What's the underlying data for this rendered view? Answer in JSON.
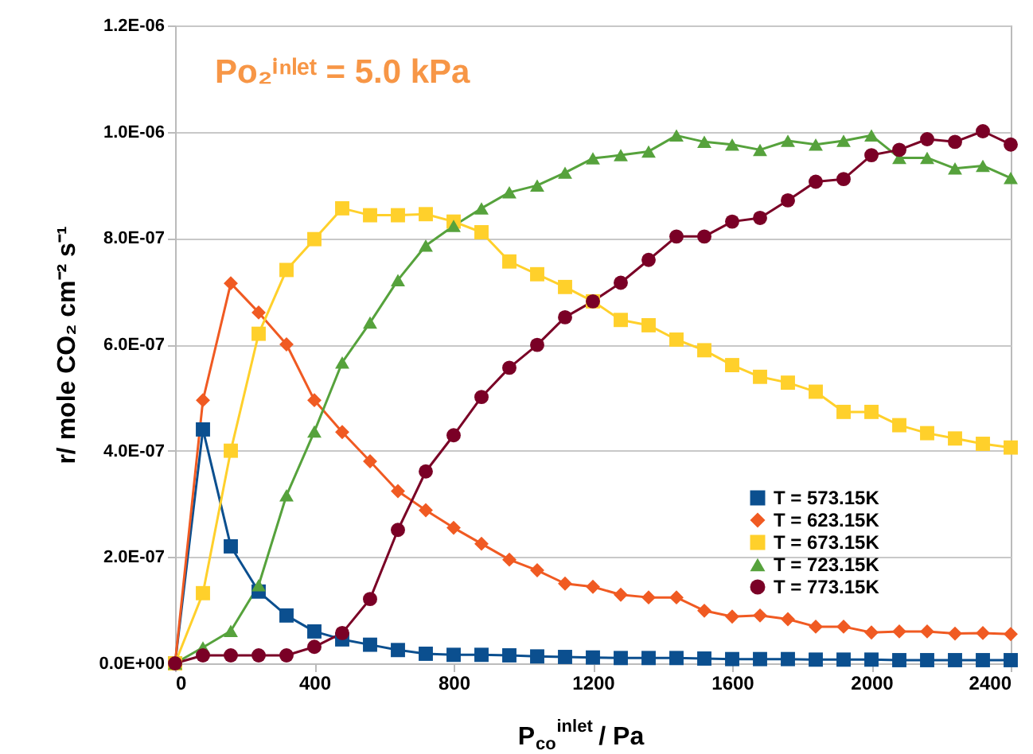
{
  "chart_data": {
    "type": "line",
    "xlabel": "P$_{co}$$^{inlet}$ /   Pa",
    "ylabel": "r/  mole CO₂ cm⁻² s⁻¹",
    "annotations": [
      "Po₂ⁱⁿˡᵉᵗ = 5.0 kPa"
    ],
    "x": [
      0,
      80,
      160,
      240,
      320,
      400,
      480,
      560,
      640,
      720,
      800,
      880,
      960,
      1040,
      1120,
      1200,
      1280,
      1360,
      1440,
      1520,
      1600,
      1680,
      1760,
      1840,
      1920,
      2000,
      2080,
      2160,
      2240,
      2320,
      2400
    ],
    "series": [
      {
        "name": "T = 573.15K",
        "color": "#0b4f8f",
        "marker": "square",
        "values": [
          0,
          4.4e-07,
          2.2e-07,
          1.35e-07,
          9e-08,
          6e-08,
          4.5e-08,
          3.5e-08,
          2.5e-08,
          1.8e-08,
          1.6e-08,
          1.6e-08,
          1.5e-08,
          1.3e-08,
          1.2e-08,
          1.1e-08,
          1e-08,
          1e-08,
          1e-08,
          9e-09,
          8e-09,
          8e-09,
          8e-09,
          7e-09,
          7e-09,
          7e-09,
          6e-09,
          6e-09,
          6e-09,
          6e-09,
          6e-09
        ]
      },
      {
        "name": "T = 623.15K",
        "color": "#f05a22",
        "marker": "diamond",
        "values": [
          0,
          4.95e-07,
          7.15e-07,
          6.6e-07,
          6e-07,
          4.95e-07,
          4.35e-07,
          3.8e-07,
          3.24e-07,
          2.88e-07,
          2.55e-07,
          2.25e-07,
          1.95e-07,
          1.75e-07,
          1.5e-07,
          1.44e-07,
          1.29e-07,
          1.24e-07,
          1.24e-07,
          9.9e-08,
          8.8e-08,
          9e-08,
          8.3e-08,
          6.9e-08,
          6.9e-08,
          5.8e-08,
          6e-08,
          6e-08,
          5.6e-08,
          5.7e-08,
          5.5e-08
        ]
      },
      {
        "name": "T = 673.15K",
        "color": "#ffd02b",
        "marker": "square",
        "values": [
          0,
          1.32e-07,
          4e-07,
          6.2e-07,
          7.4e-07,
          7.98e-07,
          8.56e-07,
          8.43e-07,
          8.43e-07,
          8.45e-07,
          8.31e-07,
          8.11e-07,
          7.56e-07,
          7.32e-07,
          7.08e-07,
          6.81e-07,
          6.46e-07,
          6.36e-07,
          6.09e-07,
          5.89e-07,
          5.61e-07,
          5.39e-07,
          5.28e-07,
          5.11e-07,
          4.73e-07,
          4.73e-07,
          4.48e-07,
          4.33e-07,
          4.23e-07,
          4.13e-07,
          4.06e-07
        ]
      },
      {
        "name": "T = 723.15K",
        "color": "#56a23c",
        "marker": "triangle",
        "values": [
          0,
          3e-08,
          6.1e-08,
          1.47e-07,
          3.16e-07,
          4.36e-07,
          5.66e-07,
          6.41e-07,
          7.21e-07,
          7.86e-07,
          8.23e-07,
          8.56e-07,
          8.86e-07,
          8.99e-07,
          9.23e-07,
          9.5e-07,
          9.56e-07,
          9.63e-07,
          9.93e-07,
          9.81e-07,
          9.76e-07,
          9.66e-07,
          9.83e-07,
          9.76e-07,
          9.83e-07,
          9.93e-07,
          9.51e-07,
          9.51e-07,
          9.31e-07,
          9.36e-07,
          9.13e-07
        ]
      },
      {
        "name": "T = 773.15K",
        "color": "#7a0026",
        "marker": "circle",
        "values": [
          0,
          1.5e-08,
          1.5e-08,
          1.5e-08,
          1.5e-08,
          3.1e-08,
          5.7e-08,
          1.21e-07,
          2.51e-07,
          3.61e-07,
          4.29e-07,
          5.01e-07,
          5.56e-07,
          5.99e-07,
          6.51e-07,
          6.81e-07,
          7.16e-07,
          7.59e-07,
          8.03e-07,
          8.03e-07,
          8.31e-07,
          8.38e-07,
          8.71e-07,
          9.06e-07,
          9.11e-07,
          9.56e-07,
          9.66e-07,
          9.86e-07,
          9.81e-07,
          1.001e-06,
          9.76e-07
        ]
      }
    ],
    "xlim": [
      0,
      2400
    ],
    "xticks": [
      0,
      400,
      800,
      1200,
      1600,
      2000,
      2400
    ],
    "ylim": [
      0,
      1.2e-06
    ],
    "yticks": [
      {
        "value": 0,
        "label": "0.0E+00"
      },
      {
        "value": 2e-07,
        "label": "2.0E-07"
      },
      {
        "value": 4e-07,
        "label": "4.0E-07"
      },
      {
        "value": 6e-07,
        "label": "6.0E-07"
      },
      {
        "value": 8e-07,
        "label": "8.0E-07"
      },
      {
        "value": 1e-06,
        "label": "1.0E-06"
      },
      {
        "value": 1.2e-06,
        "label": "1.2E-06"
      }
    ],
    "grid": "y",
    "legend": "bottom right",
    "line_style": "solid"
  }
}
